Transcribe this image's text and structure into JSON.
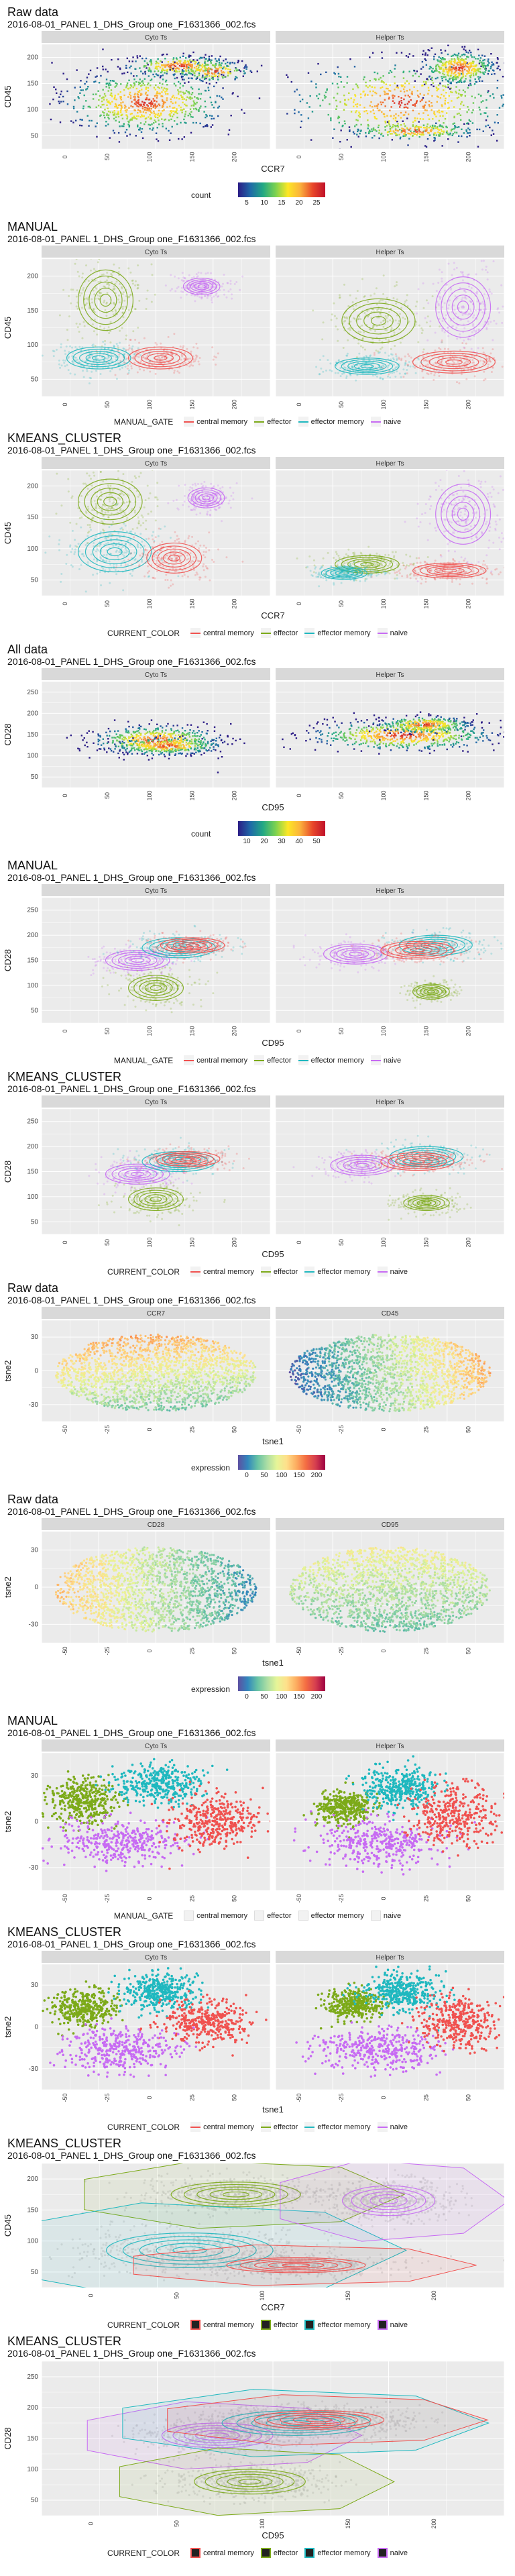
{
  "palette": {
    "central memory": "#f0514f",
    "effector": "#7caa19",
    "effector memory": "#1fb8bf",
    "naive": "#c76bf3",
    "panel_bg": "#ebebeb",
    "strip_bg": "#d9d9d9",
    "grid": "#ffffff"
  },
  "expression_gradient": [
    "#5e4fa2",
    "#3288bd",
    "#66c2a5",
    "#abdda4",
    "#e6f598",
    "#fee08b",
    "#fdae61",
    "#f46d43",
    "#d53e4f",
    "#9e0142"
  ],
  "density_gradient": [
    "#2b1c86",
    "#1f6aa8",
    "#22a884",
    "#7ad151",
    "#fde725",
    "#fbb13c",
    "#e8472a",
    "#c0112a"
  ],
  "sections": [
    {
      "id": "s1",
      "kind": "density",
      "title": "Raw data",
      "subtitle": "2016-08-01_PANEL 1_DHS_Group one_F1631366_002.fcs",
      "facets": [
        "Cyto Ts",
        "Helper Ts"
      ],
      "xlabel": "CCR7",
      "ylabel": "CD45",
      "xticks": [
        "0",
        "50",
        "100",
        "150",
        "200"
      ],
      "yticks": [
        "50",
        "100",
        "150",
        "200"
      ],
      "legend": {
        "title": "count",
        "ticks": [
          "5",
          "10",
          "15",
          "20",
          "25"
        ]
      }
    },
    {
      "id": "s2",
      "kind": "gate_contour",
      "title": "MANUAL",
      "subtitle": "2016-08-01_PANEL 1_DHS_Group one_F1631366_002.fcs",
      "facets": [
        "Cyto Ts",
        "Helper Ts"
      ],
      "xlabel": "",
      "ylabel": "CD45",
      "xticks": [
        "0",
        "50",
        "100",
        "150",
        "200"
      ],
      "yticks": [
        "50",
        "100",
        "150",
        "200"
      ],
      "legend": {
        "title": "MANUAL_GATE",
        "items": [
          "central memory",
          "effector",
          "effector memory",
          "naive"
        ]
      }
    },
    {
      "id": "s3",
      "kind": "gate_contour",
      "title": "KMEANS_CLUSTER",
      "subtitle": "2016-08-01_PANEL 1_DHS_Group one_F1631366_002.fcs",
      "facets": [
        "Cyto Ts",
        "Helper Ts"
      ],
      "xlabel": "CCR7",
      "ylabel": "CD45",
      "xticks": [
        "0",
        "50",
        "100",
        "150",
        "200"
      ],
      "yticks": [
        "50",
        "100",
        "150",
        "200"
      ],
      "legend": {
        "title": "CURRENT_COLOR",
        "items": [
          "central memory",
          "effector",
          "effector memory",
          "naive"
        ]
      }
    },
    {
      "id": "s4",
      "kind": "density",
      "title": "All data",
      "subtitle": "2016-08-01_PANEL 1_DHS_Group one_F1631366_002.fcs",
      "facets": [
        "Cyto Ts",
        "Helper Ts"
      ],
      "xlabel": "CD95",
      "ylabel": "CD28",
      "xticks": [
        "0",
        "50",
        "100",
        "150",
        "200"
      ],
      "yticks": [
        "50",
        "100",
        "150",
        "200",
        "250"
      ],
      "legend": {
        "title": "count",
        "ticks": [
          "10",
          "20",
          "30",
          "40",
          "50"
        ]
      }
    },
    {
      "id": "s5",
      "kind": "gate_contour",
      "title": "MANUAL",
      "subtitle": "2016-08-01_PANEL 1_DHS_Group one_F1631366_002.fcs",
      "facets": [
        "Cyto Ts",
        "Helper Ts"
      ],
      "xlabel": "CD95",
      "ylabel": "CD28",
      "xticks": [
        "0",
        "50",
        "100",
        "150",
        "200"
      ],
      "yticks": [
        "50",
        "100",
        "150",
        "200",
        "250"
      ],
      "legend": {
        "title": "MANUAL_GATE",
        "items": [
          "central memory",
          "effector",
          "effector memory",
          "naive"
        ]
      }
    },
    {
      "id": "s6",
      "kind": "gate_contour",
      "title": "KMEANS_CLUSTER",
      "subtitle": "2016-08-01_PANEL 1_DHS_Group one_F1631366_002.fcs",
      "facets": [
        "Cyto Ts",
        "Helper Ts"
      ],
      "xlabel": "CD95",
      "ylabel": "CD28",
      "xticks": [
        "0",
        "50",
        "100",
        "150",
        "200"
      ],
      "yticks": [
        "50",
        "100",
        "150",
        "200",
        "250"
      ],
      "legend": {
        "title": "CURRENT_COLOR",
        "items": [
          "central memory",
          "effector",
          "effector memory",
          "naive"
        ]
      }
    },
    {
      "id": "s7",
      "kind": "expression",
      "title": "Raw data",
      "subtitle": "2016-08-01_PANEL 1_DHS_Group one_F1631366_002.fcs",
      "facets": [
        "CCR7",
        "CD45"
      ],
      "xlabel": "tsne1",
      "ylabel": "tsne2",
      "xticks": [
        "-50",
        "-25",
        "0",
        "25",
        "50"
      ],
      "yticks": [
        "-30",
        "0",
        "30"
      ],
      "legend": {
        "title": "expression",
        "ticks": [
          "0",
          "50",
          "100",
          "150",
          "200"
        ]
      }
    },
    {
      "id": "s8",
      "kind": "expression",
      "title": "Raw data",
      "subtitle": "2016-08-01_PANEL 1_DHS_Group one_F1631366_002.fcs",
      "facets": [
        "CD28",
        "CD95"
      ],
      "xlabel": "tsne1",
      "ylabel": "tsne2",
      "xticks": [
        "-50",
        "-25",
        "0",
        "25",
        "50"
      ],
      "yticks": [
        "-30",
        "0",
        "30"
      ],
      "legend": {
        "title": "expression",
        "ticks": [
          "0",
          "50",
          "100",
          "150",
          "200"
        ]
      }
    },
    {
      "id": "s9",
      "kind": "tsne_gate",
      "title": "MANUAL",
      "subtitle": "2016-08-01_PANEL 1_DHS_Group one_F1631366_002.fcs",
      "facets": [
        "Cyto Ts",
        "Helper Ts"
      ],
      "xlabel": "",
      "ylabel": "tsne2",
      "xticks": [
        "-50",
        "-25",
        "0",
        "25",
        "50"
      ],
      "yticks": [
        "-30",
        "0",
        "30"
      ],
      "legend": {
        "title": "MANUAL_GATE",
        "items": [
          "central memory",
          "effector",
          "effector memory",
          "naive"
        ]
      }
    },
    {
      "id": "s10",
      "kind": "tsne_gate",
      "title": "KMEANS_CLUSTER",
      "subtitle": "2016-08-01_PANEL 1_DHS_Group one_F1631366_002.fcs",
      "facets": [
        "Cyto Ts",
        "Helper Ts"
      ],
      "xlabel": "tsne1",
      "ylabel": "tsne2",
      "xticks": [
        "-50",
        "-25",
        "0",
        "25",
        "50"
      ],
      "yticks": [
        "-30",
        "0",
        "30"
      ],
      "legend": {
        "title": "CURRENT_COLOR",
        "items": [
          "central memory",
          "effector",
          "effector memory",
          "naive"
        ]
      }
    },
    {
      "id": "s11",
      "kind": "hull",
      "title": "KMEANS_CLUSTER",
      "subtitle": "2016-08-01_PANEL 1_DHS_Group one_F1631366_002.fcs",
      "facets": [],
      "xlabel": "CCR7",
      "ylabel": "CD45",
      "xticks": [
        "0",
        "50",
        "100",
        "150",
        "200"
      ],
      "yticks": [
        "50",
        "100",
        "150",
        "200"
      ],
      "legend": {
        "title": "CURRENT_COLOR",
        "items": [
          "central memory",
          "effector",
          "effector memory",
          "naive"
        ]
      }
    },
    {
      "id": "s12",
      "kind": "hull",
      "title": "KMEANS_CLUSTER",
      "subtitle": "2016-08-01_PANEL 1_DHS_Group one_F1631366_002.fcs",
      "facets": [],
      "xlabel": "CD95",
      "ylabel": "CD28",
      "xticks": [
        "0",
        "50",
        "100",
        "150",
        "200"
      ],
      "yticks": [
        "50",
        "100",
        "150",
        "200",
        "250"
      ],
      "legend": {
        "title": "CURRENT_COLOR",
        "items": [
          "central memory",
          "effector",
          "effector memory",
          "naive"
        ]
      }
    }
  ],
  "chart_data": [
    {
      "type": "heatmap",
      "title": "Raw data",
      "subtitle": "2016-08-01_PANEL 1_DHS_Group one_F1631366_002.fcs",
      "facets": [
        "Cyto Ts",
        "Helper Ts"
      ],
      "xlabel": "CCR7",
      "ylabel": "CD45",
      "xlim": [
        0,
        220
      ],
      "ylim": [
        40,
        240
      ],
      "fill": "count",
      "fill_range": [
        0,
        25
      ],
      "clusters": [
        {
          "facet": "Cyto Ts",
          "x": 110,
          "y": 190
        },
        {
          "facet": "Helper Ts",
          "x": 160,
          "y": 180
        }
      ]
    },
    {
      "type": "scatter",
      "title": "MANUAL",
      "facets": [
        "Cyto Ts",
        "Helper Ts"
      ],
      "ylabel": "CD45",
      "legend": "MANUAL_GATE",
      "series": [
        {
          "name": "central memory",
          "x": 150,
          "y": 70
        },
        {
          "name": "effector",
          "x": 80,
          "y": 180
        },
        {
          "name": "effector memory",
          "x": 60,
          "y": 70
        },
        {
          "name": "naive",
          "x": 170,
          "y": 180
        }
      ]
    },
    {
      "type": "scatter",
      "title": "KMEANS_CLUSTER",
      "facets": [
        "Cyto Ts",
        "Helper Ts"
      ],
      "xlabel": "CCR7",
      "ylabel": "CD45",
      "legend": "CURRENT_COLOR",
      "series": [
        {
          "name": "central memory",
          "x": 150,
          "y": 70
        },
        {
          "name": "effector",
          "x": 80,
          "y": 190
        },
        {
          "name": "effector memory",
          "x": 70,
          "y": 90
        },
        {
          "name": "naive",
          "x": 170,
          "y": 180
        }
      ]
    },
    {
      "type": "heatmap",
      "title": "All data",
      "facets": [
        "Cyto Ts",
        "Helper Ts"
      ],
      "xlabel": "CD95",
      "ylabel": "CD28",
      "xlim": [
        0,
        220
      ],
      "ylim": [
        40,
        270
      ],
      "fill": "count",
      "fill_range": [
        0,
        50
      ],
      "clusters": [
        {
          "facet": "Cyto Ts",
          "x": 100,
          "y": 140
        },
        {
          "facet": "Helper Ts",
          "x": 120,
          "y": 170
        }
      ]
    },
    {
      "type": "scatter",
      "title": "MANUAL",
      "facets": [
        "Cyto Ts",
        "Helper Ts"
      ],
      "xlabel": "CD95",
      "ylabel": "CD28",
      "legend": "MANUAL_GATE",
      "series": [
        {
          "name": "central memory",
          "x": 130,
          "y": 170
        },
        {
          "name": "effector",
          "x": 90,
          "y": 90
        },
        {
          "name": "effector memory",
          "x": 120,
          "y": 160
        },
        {
          "name": "naive",
          "x": 60,
          "y": 140
        }
      ]
    },
    {
      "type": "scatter",
      "title": "KMEANS_CLUSTER",
      "facets": [
        "Cyto Ts",
        "Helper Ts"
      ],
      "xlabel": "CD95",
      "ylabel": "CD28",
      "legend": "CURRENT_COLOR",
      "series": [
        {
          "name": "central memory",
          "x": 130,
          "y": 170
        },
        {
          "name": "effector",
          "x": 90,
          "y": 90
        },
        {
          "name": "effector memory",
          "x": 120,
          "y": 160
        },
        {
          "name": "naive",
          "x": 60,
          "y": 140
        }
      ]
    },
    {
      "type": "scatter",
      "title": "Raw data",
      "facets": [
        "CCR7",
        "CD45"
      ],
      "xlabel": "tsne1",
      "ylabel": "tsne2",
      "legend": "expression",
      "fill_range": [
        0,
        200
      ]
    },
    {
      "type": "scatter",
      "title": "Raw data",
      "facets": [
        "CD28",
        "CD95"
      ],
      "xlabel": "tsne1",
      "ylabel": "tsne2",
      "legend": "expression",
      "fill_range": [
        0,
        200
      ]
    },
    {
      "type": "scatter",
      "title": "MANUAL",
      "facets": [
        "Cyto Ts",
        "Helper Ts"
      ],
      "ylabel": "tsne2",
      "legend": "MANUAL_GATE",
      "series": [
        {
          "name": "central memory",
          "x": 25,
          "y": 0
        },
        {
          "name": "effector",
          "x": -40,
          "y": 10
        },
        {
          "name": "effector memory",
          "x": -5,
          "y": 25
        },
        {
          "name": "naive",
          "x": -10,
          "y": -25
        }
      ]
    },
    {
      "type": "scatter",
      "title": "KMEANS_CLUSTER",
      "facets": [
        "Cyto Ts",
        "Helper Ts"
      ],
      "xlabel": "tsne1",
      "ylabel": "tsne2",
      "legend": "CURRENT_COLOR",
      "series": [
        {
          "name": "central memory",
          "x": 25,
          "y": 0
        },
        {
          "name": "effector",
          "x": -35,
          "y": 10
        },
        {
          "name": "effector memory",
          "x": 5,
          "y": 25
        },
        {
          "name": "naive",
          "x": -10,
          "y": -25
        }
      ]
    },
    {
      "type": "scatter",
      "title": "KMEANS_CLUSTER",
      "xlabel": "CCR7",
      "ylabel": "CD45",
      "legend": "CURRENT_COLOR",
      "series": [
        {
          "name": "central memory",
          "x": 150,
          "y": 70
        },
        {
          "name": "effector",
          "x": 100,
          "y": 200
        },
        {
          "name": "effector memory",
          "x": 80,
          "y": 90
        },
        {
          "name": "naive",
          "x": 170,
          "y": 180
        }
      ]
    },
    {
      "type": "scatter",
      "title": "KMEANS_CLUSTER",
      "xlabel": "CD95",
      "ylabel": "CD28",
      "legend": "CURRENT_COLOR",
      "series": [
        {
          "name": "central memory",
          "x": 130,
          "y": 170
        },
        {
          "name": "effector",
          "x": 100,
          "y": 90
        },
        {
          "name": "effector memory",
          "x": 120,
          "y": 160
        },
        {
          "name": "naive",
          "x": 70,
          "y": 150
        }
      ]
    }
  ]
}
